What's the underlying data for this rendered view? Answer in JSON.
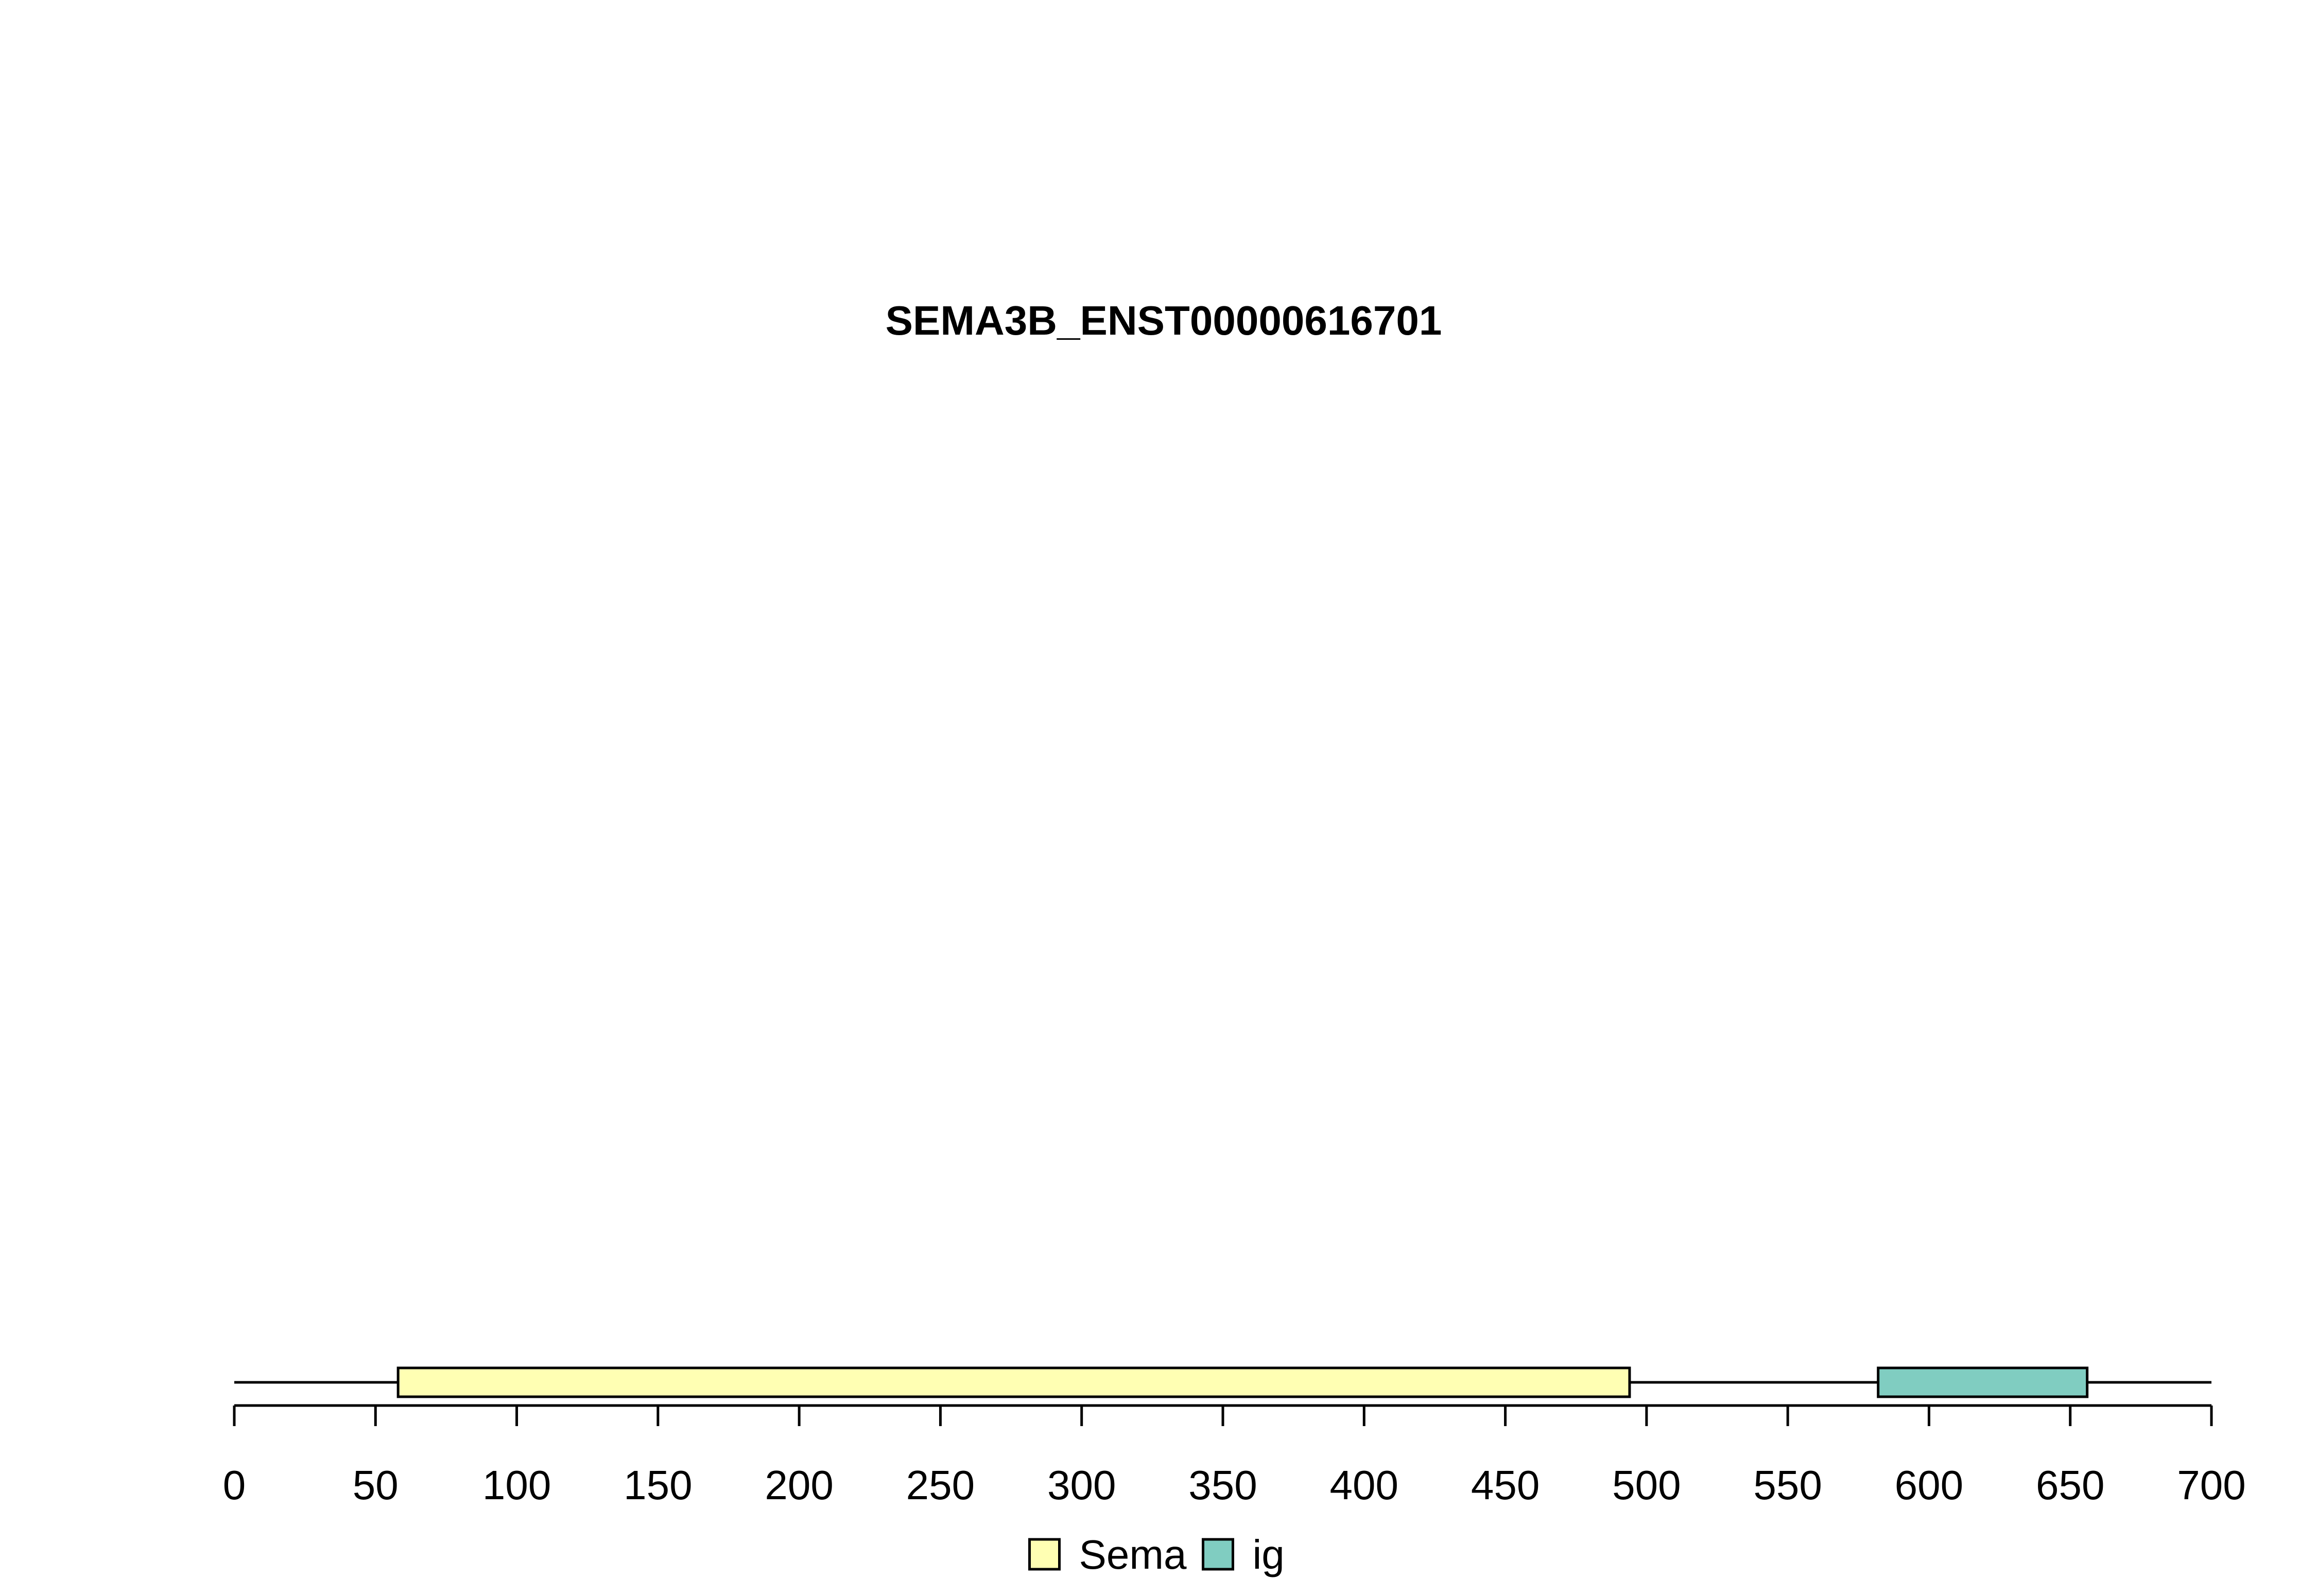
{
  "chart_data": {
    "type": "bar",
    "title": "SEMA3B_ENST00000616701",
    "xlabel": "",
    "ylabel": "",
    "xlim": [
      0,
      700
    ],
    "protein_length": 700,
    "x_ticks": [
      0,
      50,
      100,
      150,
      200,
      250,
      300,
      350,
      400,
      450,
      500,
      550,
      600,
      650,
      700
    ],
    "domains": [
      {
        "name": "Sema",
        "start": 58,
        "end": 494,
        "color": "#FFFFB3"
      },
      {
        "name": "ig",
        "start": 582,
        "end": 656,
        "color": "#80CDC1"
      }
    ],
    "legend": {
      "position": "bottom",
      "entries": [
        {
          "label": "Sema",
          "color": "#FFFFB3"
        },
        {
          "label": "ig",
          "color": "#80CDC1"
        }
      ]
    },
    "grid": false
  }
}
